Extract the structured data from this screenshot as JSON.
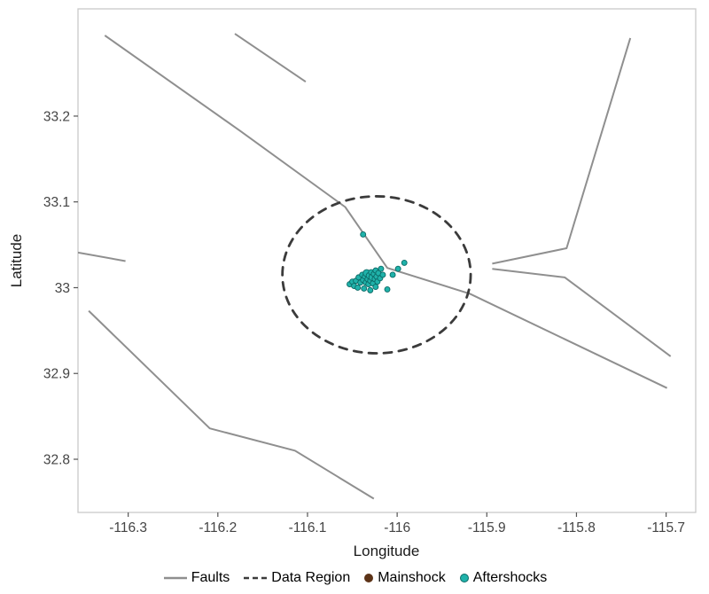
{
  "chart_data": {
    "type": "scatter",
    "title": "",
    "xlabel": "Longitude",
    "ylabel": "Latitude",
    "xlim": [
      -116.356,
      -115.667
    ],
    "ylim": [
      32.738,
      33.325
    ],
    "grid": false,
    "xticks": {
      "values": [
        -116.3,
        -116.2,
        -116.1,
        -116.0,
        -115.9,
        -115.8,
        -115.7
      ],
      "labels": [
        "-116.3",
        "-116.2",
        "-116.1",
        "-116",
        "-115.9",
        "-115.8",
        "-115.7"
      ]
    },
    "yticks": {
      "values": [
        32.8,
        32.9,
        33.0,
        33.1,
        33.2
      ],
      "labels": [
        "32.8",
        "32.9",
        "33",
        "33.1",
        "33.2"
      ]
    },
    "colors": {
      "faults": "#8f8f8f",
      "data_region": "#3b3b3b",
      "mainshock": "#5C3317",
      "mainshock_stroke": "#2b1503",
      "aftershocks": "#20B2AA",
      "aftershocks_stroke": "#0b6a66",
      "panel_border": "#c9c9c9",
      "tick_mark": "#555555",
      "tick_label": "#444444",
      "axis_title": "#1a1a1a",
      "legend_text": "#000000"
    },
    "faults": [
      [
        [
          -116.326,
          33.294
        ],
        [
          -116.174,
          33.182
        ],
        [
          -116.058,
          33.094
        ],
        [
          -116.011,
          33.023
        ],
        [
          -115.919,
          32.993
        ],
        [
          -115.699,
          32.883
        ]
      ],
      [
        [
          -116.181,
          33.296
        ],
        [
          -116.102,
          33.24
        ]
      ],
      [
        [
          -115.74,
          33.291
        ],
        [
          -115.811,
          33.046
        ],
        [
          -115.894,
          33.028
        ]
      ],
      [
        [
          -115.894,
          33.022
        ],
        [
          -115.813,
          33.012
        ],
        [
          -115.695,
          32.92
        ]
      ],
      [
        [
          -116.356,
          33.041
        ],
        [
          -116.303,
          33.031
        ]
      ],
      [
        [
          -116.344,
          32.973
        ],
        [
          -116.209,
          32.836
        ],
        [
          -116.114,
          32.81
        ],
        [
          -116.026,
          32.754
        ]
      ]
    ],
    "data_region": {
      "center": [
        -116.023,
        33.015
      ],
      "radius_lon": 0.105,
      "radius_lat": 0.0915
    },
    "mainshock": [
      -116.033,
      33.011
    ],
    "aftershocks": [
      [
        -116.038,
        33.062
      ],
      [
        -115.992,
        33.029
      ],
      [
        -115.999,
        33.022
      ],
      [
        -116.005,
        33.015
      ],
      [
        -116.011,
        32.998
      ],
      [
        -116.053,
        33.004
      ],
      [
        -116.05,
        33.007
      ],
      [
        -116.048,
        33.002
      ],
      [
        -116.046,
        33.008
      ],
      [
        -116.044,
        33.0
      ],
      [
        -116.043,
        33.012
      ],
      [
        -116.041,
        33.006
      ],
      [
        -116.039,
        33.015
      ],
      [
        -116.038,
        33.009
      ],
      [
        -116.037,
        32.999
      ],
      [
        -116.036,
        33.013
      ],
      [
        -116.035,
        33.006
      ],
      [
        -116.034,
        33.017,
        4
      ],
      [
        -116.033,
        33.01
      ],
      [
        -116.032,
        33.004
      ],
      [
        -116.031,
        33.014,
        3.6
      ],
      [
        -116.03,
        33.008
      ],
      [
        -116.03,
        32.997
      ],
      [
        -116.029,
        33.018
      ],
      [
        -116.028,
        33.012,
        3.6
      ],
      [
        -116.027,
        33.005
      ],
      [
        -116.026,
        33.016
      ],
      [
        -116.025,
        33.01
      ],
      [
        -116.024,
        33.001
      ],
      [
        -116.024,
        33.02
      ],
      [
        -116.023,
        33.013
      ],
      [
        -116.022,
        33.007
      ],
      [
        -116.021,
        33.017
      ],
      [
        -116.019,
        33.011
      ],
      [
        -116.018,
        33.022
      ],
      [
        -116.016,
        33.015
      ]
    ],
    "legend": {
      "position": "bottom",
      "items": [
        {
          "label": "Faults",
          "swatch": "line"
        },
        {
          "label": "Data Region",
          "swatch": "dashed-line"
        },
        {
          "label": "Mainshock",
          "swatch": "dot"
        },
        {
          "label": "Aftershocks",
          "swatch": "dot"
        }
      ]
    }
  }
}
